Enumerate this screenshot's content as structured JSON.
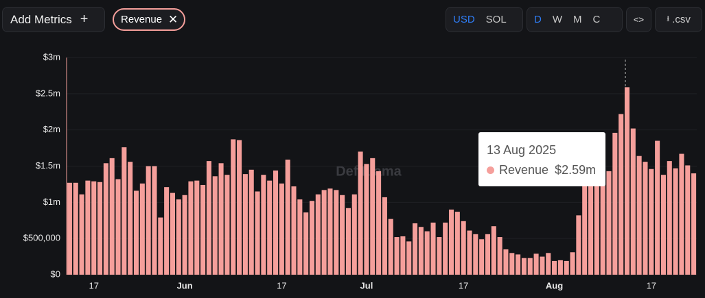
{
  "toolbar": {
    "add_metrics": "Add Metrics",
    "metric": "Revenue",
    "currencies": [
      "USD",
      "SOL"
    ],
    "periods": [
      "D",
      "W",
      "M",
      "C"
    ],
    "embed": "<>",
    "csv": ".csv"
  },
  "chart_data": {
    "type": "bar",
    "watermark": "DefiLlama",
    "categories": [
      null,
      null,
      null,
      null,
      "17",
      null,
      null,
      null,
      null,
      null,
      null,
      null,
      null,
      null,
      null,
      null,
      null,
      null,
      null,
      "Jun",
      null,
      null,
      null,
      null,
      null,
      null,
      null,
      null,
      null,
      null,
      null,
      null,
      null,
      null,
      null,
      "17",
      null,
      null,
      null,
      null,
      null,
      null,
      null,
      null,
      null,
      null,
      null,
      null,
      null,
      "Jul",
      null,
      null,
      null,
      null,
      null,
      null,
      null,
      null,
      null,
      null,
      null,
      null,
      null,
      null,
      null,
      "17",
      null,
      null,
      null,
      null,
      null,
      null,
      null,
      null,
      null,
      null,
      null,
      null,
      null,
      null,
      "Aug",
      null,
      null,
      null,
      null,
      null,
      null,
      null,
      null,
      null,
      null,
      null,
      null,
      null,
      null,
      null,
      "17",
      null,
      null,
      null,
      null,
      null,
      null,
      null
    ],
    "series": [
      {
        "name": "Revenue",
        "color": "#f59f9b",
        "values": [
          1270000,
          1270000,
          1110000,
          1300000,
          1290000,
          1280000,
          1540000,
          1610000,
          1320000,
          1760000,
          1560000,
          1160000,
          1260000,
          1500000,
          1500000,
          790000,
          1210000,
          1130000,
          1040000,
          1100000,
          1290000,
          1300000,
          1240000,
          1570000,
          1360000,
          1540000,
          1380000,
          1870000,
          1860000,
          1390000,
          1450000,
          1150000,
          1380000,
          1300000,
          1440000,
          1260000,
          1590000,
          1220000,
          1040000,
          860000,
          1020000,
          1110000,
          1170000,
          1190000,
          1170000,
          1100000,
          920000,
          1110000,
          1700000,
          1530000,
          1610000,
          1430000,
          1070000,
          770000,
          520000,
          530000,
          460000,
          710000,
          660000,
          600000,
          720000,
          520000,
          720000,
          900000,
          870000,
          740000,
          610000,
          560000,
          490000,
          560000,
          670000,
          520000,
          350000,
          300000,
          280000,
          230000,
          230000,
          290000,
          250000,
          300000,
          190000,
          200000,
          190000,
          310000,
          820000,
          1300000,
          1350000,
          1330000,
          1300000,
          1430000,
          1960000,
          2220000,
          2590000,
          2020000,
          1640000,
          1560000,
          1460000,
          1850000,
          1380000,
          1570000,
          1470000,
          1670000,
          1510000,
          1400000
        ]
      }
    ],
    "ylim": [
      0,
      3000000
    ],
    "yticks": [
      {
        "value": 0,
        "label": "$0"
      },
      {
        "value": 500000,
        "label": "$500,000"
      },
      {
        "value": 1000000,
        "label": "$1m"
      },
      {
        "value": 1500000,
        "label": "$1.5m"
      },
      {
        "value": 2000000,
        "label": "$2m"
      },
      {
        "value": 2500000,
        "label": "$2.5m"
      },
      {
        "value": 3000000,
        "label": "$3m"
      }
    ],
    "grid": true,
    "tooltip": {
      "date": "13 Aug 2025",
      "value": "$2.59m"
    }
  }
}
